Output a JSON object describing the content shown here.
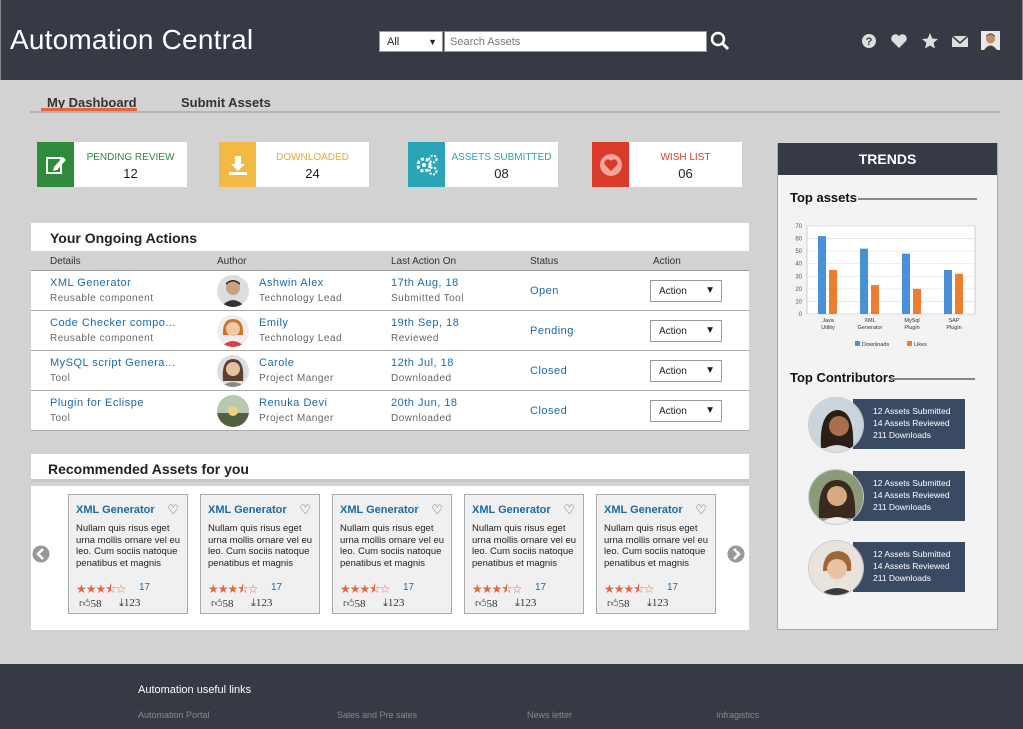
{
  "header": {
    "title": "Automation Central",
    "category": "All",
    "search_placeholder": "Search Assets"
  },
  "tabs": [
    {
      "label": "My Dashboard"
    },
    {
      "label": "Submit Assets"
    }
  ],
  "stats": [
    {
      "label": "PENDING REVIEW",
      "value": "12",
      "color": "#2e8b3c"
    },
    {
      "label": "DOWNLOADED",
      "value": "24",
      "color": "#f4b942"
    },
    {
      "label": "ASSETS SUBMITTED",
      "value": "08",
      "color": "#2aa5b5"
    },
    {
      "label": "WISH LIST",
      "value": "06",
      "color": "#d93a2a"
    }
  ],
  "actions": {
    "title": "Your Ongoing Actions",
    "columns": [
      "Details",
      "Author",
      "Last Action On",
      "Status",
      "Action"
    ],
    "rows": [
      {
        "name": "XML Generator",
        "type": "Reusable component",
        "author": "Ashwin Alex",
        "role": "Technology Lead",
        "date": "17th Aug, 18",
        "activity": "Submitted Tool",
        "status": "Open",
        "action": "Action"
      },
      {
        "name": "Code Checker compo...",
        "type": "Reusable component",
        "author": "Emily",
        "role": "Technology Lead",
        "date": "19th Sep, 18",
        "activity": "Reviewed",
        "status": "Pending",
        "action": "Action"
      },
      {
        "name": "MySQL script Genera...",
        "type": "Tool",
        "author": "Carole",
        "role": "Project Manger",
        "date": "12th Jul, 18",
        "activity": "Downloaded",
        "status": "Closed",
        "action": "Action"
      },
      {
        "name": "Plugin for Eclispe",
        "type": "Tool",
        "author": "Renuka Devi",
        "role": "Project Manger",
        "date": "20th Jun, 18",
        "activity": "Downloaded",
        "status": "Closed",
        "action": "Action"
      }
    ]
  },
  "recommended": {
    "title": "Recommended Assets for you",
    "cards": [
      {
        "title": "XML Generator",
        "desc": "Nullam quis risus eget urna mollis ornare vel eu leo. Cum sociis natoque penatibus et magnis",
        "rating": 3.5,
        "reviews": "17",
        "likes": "58",
        "downloads": "123"
      },
      {
        "title": "XML Generator",
        "desc": "Nullam quis risus eget urna mollis ornare vel eu leo. Cum sociis natoque penatibus et magnis",
        "rating": 3.5,
        "reviews": "17",
        "likes": "58",
        "downloads": "123"
      },
      {
        "title": "XML Generator",
        "desc": "Nullam quis risus eget urna mollis ornare vel eu leo. Cum sociis natoque penatibus et magnis",
        "rating": 3.5,
        "reviews": "17",
        "likes": "58",
        "downloads": "123"
      },
      {
        "title": "XML Generator",
        "desc": "Nullam quis risus eget urna mollis ornare vel eu leo. Cum sociis natoque penatibus et magnis",
        "rating": 3.5,
        "reviews": "17",
        "likes": "58",
        "downloads": "123"
      },
      {
        "title": "XML Generator",
        "desc": "Nullam quis risus eget urna mollis ornare vel eu leo. Cum sociis natoque penatibus et magnis",
        "rating": 3.5,
        "reviews": "17",
        "likes": "58",
        "downloads": "123"
      }
    ]
  },
  "trends": {
    "title": "TRENDS",
    "top_assets_title": "Top assets",
    "top_contributors_title": "Top Contributors",
    "contributors": [
      {
        "submitted": "12 Assets Submitted",
        "reviewed": "14 Assets Reviewed",
        "downloads": "211 Downloads"
      },
      {
        "submitted": "12 Assets Submitted",
        "reviewed": "14 Assets Reviewed",
        "downloads": "211 Downloads"
      },
      {
        "submitted": "12 Assets Submitted",
        "reviewed": "14 Assets Reviewed",
        "downloads": "211 Downloads"
      }
    ]
  },
  "chart_data": {
    "type": "bar",
    "categories": [
      "Java Utility",
      "XML Generator",
      "MySql Plugin",
      "SAP Plugin"
    ],
    "series": [
      {
        "name": "Downloads",
        "values": [
          62,
          52,
          48,
          35
        ],
        "color": "#4a90d9"
      },
      {
        "name": "Likes",
        "values": [
          35,
          23,
          20,
          32
        ],
        "color": "#ed7d31"
      }
    ],
    "ylim": [
      0,
      70
    ],
    "yticks": [
      0,
      10,
      20,
      30,
      40,
      50,
      60,
      70
    ],
    "legend": "bottom",
    "grid": true
  },
  "footer": {
    "title": "Automation useful links",
    "links": [
      "Automation Portal",
      "Sales and Pre sales",
      "News letter",
      "Infragistics"
    ]
  }
}
